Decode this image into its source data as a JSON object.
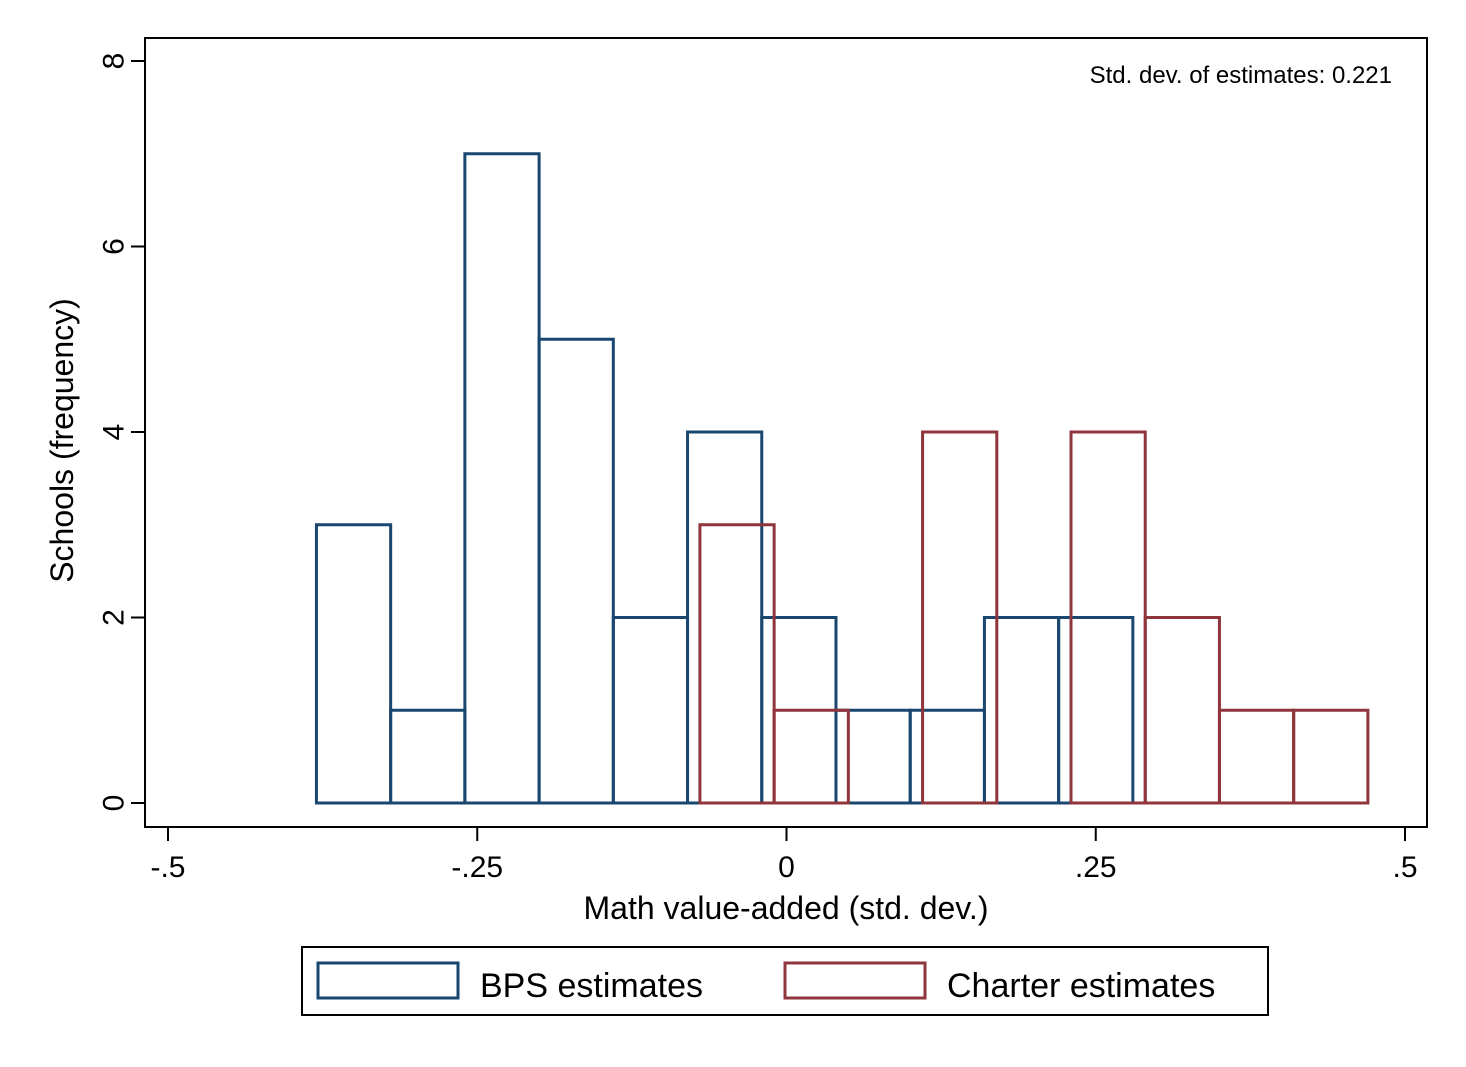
{
  "chart_data": {
    "type": "bar",
    "subtype": "overlaid-histogram",
    "title": "",
    "xlabel": "Math value-added (std. dev.)",
    "ylabel": "Schools (frequency)",
    "xlim": [
      -0.5,
      0.5
    ],
    "ylim": [
      0,
      8
    ],
    "xticks": [
      -0.5,
      -0.25,
      0,
      0.25,
      0.5
    ],
    "xtick_labels": [
      "-.5",
      "-.25",
      "0",
      ".25",
      ".5"
    ],
    "yticks": [
      0,
      2,
      4,
      6,
      8
    ],
    "ytick_labels": [
      "0",
      "2",
      "4",
      "6",
      "8"
    ],
    "grid": false,
    "annotation": "Std. dev. of estimates: 0.221",
    "legend": {
      "placement": "bottom"
    },
    "series": [
      {
        "name": "BPS estimates",
        "color": "#1a476f",
        "bins": [
          {
            "x0": -0.38,
            "x1": -0.32,
            "count": 3
          },
          {
            "x0": -0.32,
            "x1": -0.26,
            "count": 1
          },
          {
            "x0": -0.26,
            "x1": -0.2,
            "count": 7
          },
          {
            "x0": -0.2,
            "x1": -0.14,
            "count": 5
          },
          {
            "x0": -0.14,
            "x1": -0.08,
            "count": 2
          },
          {
            "x0": -0.08,
            "x1": -0.02,
            "count": 4
          },
          {
            "x0": -0.02,
            "x1": 0.04,
            "count": 2
          },
          {
            "x0": 0.04,
            "x1": 0.1,
            "count": 1
          },
          {
            "x0": 0.1,
            "x1": 0.16,
            "count": 1
          },
          {
            "x0": 0.16,
            "x1": 0.22,
            "count": 2
          },
          {
            "x0": 0.22,
            "x1": 0.28,
            "count": 2
          }
        ]
      },
      {
        "name": "Charter estimates",
        "color": "#90353b",
        "bins": [
          {
            "x0": -0.07,
            "x1": -0.01,
            "count": 3
          },
          {
            "x0": -0.01,
            "x1": 0.05,
            "count": 1
          },
          {
            "x0": 0.05,
            "x1": 0.11,
            "count": 0
          },
          {
            "x0": 0.11,
            "x1": 0.17,
            "count": 4
          },
          {
            "x0": 0.17,
            "x1": 0.23,
            "count": 0
          },
          {
            "x0": 0.23,
            "x1": 0.29,
            "count": 4
          },
          {
            "x0": 0.29,
            "x1": 0.35,
            "count": 2
          },
          {
            "x0": 0.35,
            "x1": 0.41,
            "count": 1
          },
          {
            "x0": 0.41,
            "x1": 0.47,
            "count": 1
          }
        ]
      }
    ]
  }
}
